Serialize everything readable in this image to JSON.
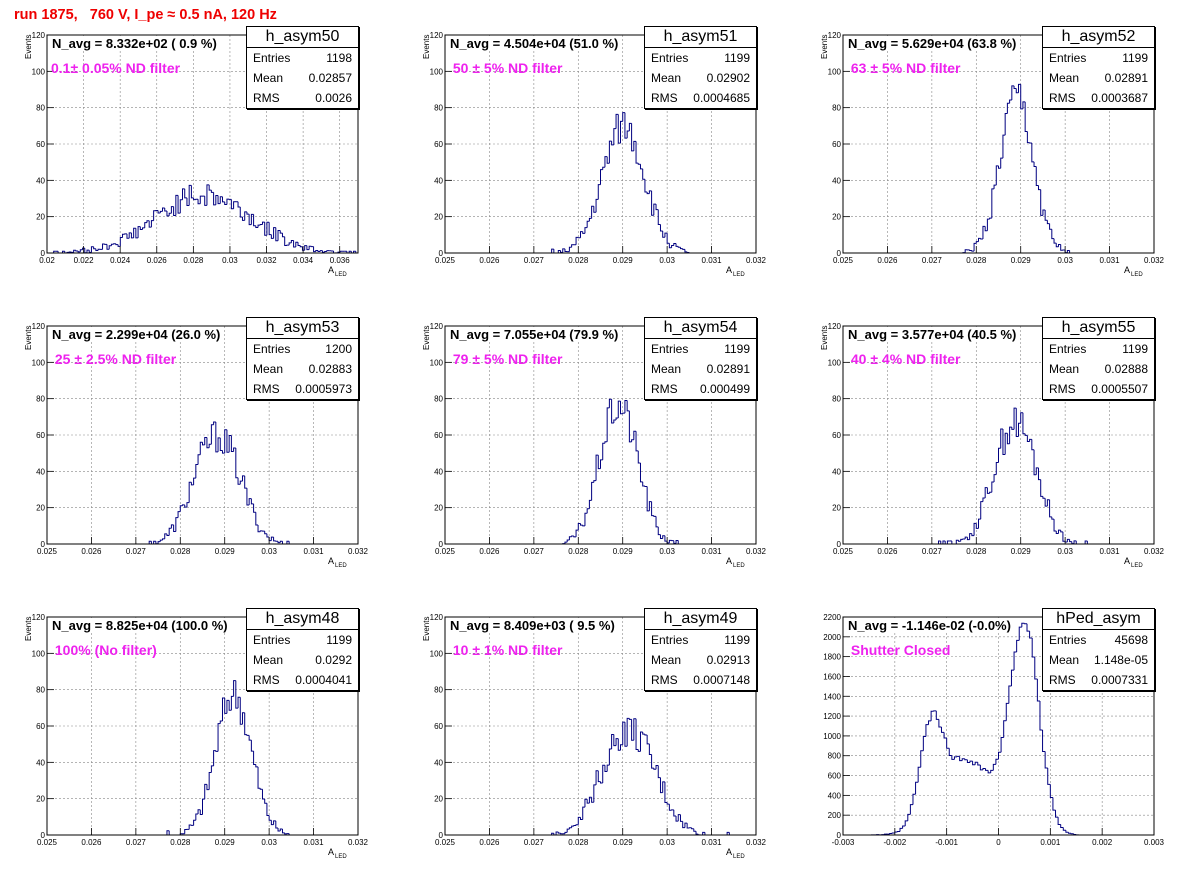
{
  "canvas_title": "run 1875,   760 V, I_pe ≈ 0.5 nA, 120 Hz",
  "colors": {
    "title": "#ee0000",
    "filter_text": "#ee22ee",
    "histogram": "#000080",
    "grid": "#888888"
  },
  "stat_labels": {
    "entries": "Entries",
    "mean": "Mean",
    "rms": "RMS"
  },
  "chart_data": [
    {
      "type": "histogram",
      "name": "h_asym50",
      "navg": "N_avg = 8.332e+02 ( 0.9 %)",
      "filter": "0.1± 0.05% ND filter",
      "entries": "1198",
      "mean": "0.02857",
      "rms": "0.0026",
      "xlabel": "A",
      "xlabel_sub": "LED",
      "ylabel": "Events",
      "xlim": [
        0.02,
        0.037
      ],
      "ylim": [
        0,
        120
      ],
      "xticks": [
        0.02,
        0.022,
        0.024,
        0.026,
        0.028,
        0.03,
        0.032,
        0.034,
        0.036
      ],
      "xtick_labels": [
        "0.02",
        "0.022",
        "0.024",
        "0.026",
        "0.028",
        "0.03",
        "0.032",
        "0.034",
        "0.036"
      ],
      "yticks": [
        0,
        20,
        40,
        60,
        80,
        100,
        120
      ],
      "ytick_labels": [
        "0",
        "20",
        "40",
        "60",
        "80",
        "100",
        "120"
      ],
      "grid": true,
      "mu": 0.02857,
      "sigma": 0.0026,
      "peak": 32,
      "shape": "single",
      "seed": 50
    },
    {
      "type": "histogram",
      "name": "h_asym51",
      "navg": "N_avg = 4.504e+04 (51.0 %)",
      "filter": " 50 ± 5% ND filter",
      "entries": "1199",
      "mean": "0.02902",
      "rms": "0.0004685",
      "xlabel": "A",
      "xlabel_sub": "LED",
      "ylabel": "Events",
      "xlim": [
        0.025,
        0.032
      ],
      "ylim": [
        0,
        120
      ],
      "xticks": [
        0.025,
        0.026,
        0.027,
        0.028,
        0.029,
        0.03,
        0.031,
        0.032
      ],
      "xtick_labels": [
        "0.025",
        "0.026",
        "0.027",
        "0.028",
        "0.029",
        "0.03",
        "0.031",
        "0.032"
      ],
      "yticks": [
        0,
        20,
        40,
        60,
        80,
        100,
        120
      ],
      "ytick_labels": [
        "0",
        "20",
        "40",
        "60",
        "80",
        "100",
        "120"
      ],
      "grid": true,
      "mu": 0.02902,
      "sigma": 0.00047,
      "peak": 70,
      "shape": "single",
      "seed": 51
    },
    {
      "type": "histogram",
      "name": "h_asym52",
      "navg": "N_avg = 5.629e+04 (63.8 %)",
      "filter": " 63 ± 5% ND filter",
      "entries": "1199",
      "mean": "0.02891",
      "rms": "0.0003687",
      "xlabel": "A",
      "xlabel_sub": "LED",
      "ylabel": "Events",
      "xlim": [
        0.025,
        0.032
      ],
      "ylim": [
        0,
        120
      ],
      "xticks": [
        0.025,
        0.026,
        0.027,
        0.028,
        0.029,
        0.03,
        0.031,
        0.032
      ],
      "xtick_labels": [
        "0.025",
        "0.026",
        "0.027",
        "0.028",
        "0.029",
        "0.03",
        "0.031",
        "0.032"
      ],
      "yticks": [
        0,
        20,
        40,
        60,
        80,
        100,
        120
      ],
      "ytick_labels": [
        "0",
        "20",
        "40",
        "60",
        "80",
        "100",
        "120"
      ],
      "grid": true,
      "mu": 0.02891,
      "sigma": 0.00037,
      "peak": 86,
      "shape": "single",
      "seed": 52
    },
    {
      "type": "histogram",
      "name": "h_asym53",
      "navg": "N_avg = 2.299e+04 (26.0 %)",
      "filter": " 25 ± 2.5% ND filter",
      "entries": "1200",
      "mean": "0.02883",
      "rms": "0.0005973",
      "xlabel": "A",
      "xlabel_sub": "LED",
      "ylabel": "Events",
      "xlim": [
        0.025,
        0.032
      ],
      "ylim": [
        0,
        120
      ],
      "xticks": [
        0.025,
        0.026,
        0.027,
        0.028,
        0.029,
        0.03,
        0.031,
        0.032
      ],
      "xtick_labels": [
        "0.025",
        "0.026",
        "0.027",
        "0.028",
        "0.029",
        "0.03",
        "0.031",
        "0.032"
      ],
      "yticks": [
        0,
        20,
        40,
        60,
        80,
        100,
        120
      ],
      "ytick_labels": [
        "0",
        "20",
        "40",
        "60",
        "80",
        "100",
        "120"
      ],
      "grid": true,
      "mu": 0.02883,
      "sigma": 0.0006,
      "peak": 50,
      "shape": "plateau",
      "seed": 53
    },
    {
      "type": "histogram",
      "name": "h_asym54",
      "navg": "N_avg = 7.055e+04 (79.9 %)",
      "filter": " 79 ± 5% ND filter",
      "entries": "1199",
      "mean": "0.02891",
      "rms": "0.000499",
      "xlabel": "A",
      "xlabel_sub": "LED",
      "ylabel": "Events",
      "xlim": [
        0.025,
        0.032
      ],
      "ylim": [
        0,
        120
      ],
      "xticks": [
        0.025,
        0.026,
        0.027,
        0.028,
        0.029,
        0.03,
        0.031,
        0.032
      ],
      "xtick_labels": [
        "0.025",
        "0.026",
        "0.027",
        "0.028",
        "0.029",
        "0.03",
        "0.031",
        "0.032"
      ],
      "yticks": [
        0,
        20,
        40,
        60,
        80,
        100,
        120
      ],
      "ytick_labels": [
        "0",
        "20",
        "40",
        "60",
        "80",
        "100",
        "120"
      ],
      "grid": true,
      "mu": 0.02891,
      "sigma": 0.0005,
      "peak": 64,
      "shape": "plateau",
      "seed": 54
    },
    {
      "type": "histogram",
      "name": "h_asym55",
      "navg": "N_avg = 3.577e+04 (40.5 %)",
      "filter": " 40 ± 4% ND filter",
      "entries": "1199",
      "mean": "0.02888",
      "rms": "0.0005507",
      "xlabel": "A",
      "xlabel_sub": "LED",
      "ylabel": "Events",
      "xlim": [
        0.025,
        0.032
      ],
      "ylim": [
        0,
        120
      ],
      "xticks": [
        0.025,
        0.026,
        0.027,
        0.028,
        0.029,
        0.03,
        0.031,
        0.032
      ],
      "xtick_labels": [
        "0.025",
        "0.026",
        "0.027",
        "0.028",
        "0.029",
        "0.03",
        "0.031",
        "0.032"
      ],
      "yticks": [
        0,
        20,
        40,
        60,
        80,
        100,
        120
      ],
      "ytick_labels": [
        "0",
        "20",
        "40",
        "60",
        "80",
        "100",
        "120"
      ],
      "grid": true,
      "mu": 0.02888,
      "sigma": 0.00055,
      "peak": 56,
      "shape": "plateau",
      "seed": 55
    },
    {
      "type": "histogram",
      "name": "h_asym48",
      "navg": "N_avg = 8.825e+04 (100.0 %)",
      "filter": " 100% (No filter)",
      "entries": "1199",
      "mean": "0.0292",
      "rms": "0.0004041",
      "xlabel": "A",
      "xlabel_sub": "LED",
      "ylabel": "Events",
      "xlim": [
        0.025,
        0.032
      ],
      "ylim": [
        0,
        120
      ],
      "xticks": [
        0.025,
        0.026,
        0.027,
        0.028,
        0.029,
        0.03,
        0.031,
        0.032
      ],
      "xtick_labels": [
        "0.025",
        "0.026",
        "0.027",
        "0.028",
        "0.029",
        "0.03",
        "0.031",
        "0.032"
      ],
      "yticks": [
        0,
        20,
        40,
        60,
        80,
        100,
        120
      ],
      "ytick_labels": [
        "0",
        "20",
        "40",
        "60",
        "80",
        "100",
        "120"
      ],
      "grid": true,
      "mu": 0.0292,
      "sigma": 0.0004,
      "peak": 78,
      "shape": "single",
      "seed": 48
    },
    {
      "type": "histogram",
      "name": "h_asym49",
      "navg": "N_avg = 8.409e+03 ( 9.5 %)",
      "filter": " 10 ± 1% ND filter",
      "entries": "1199",
      "mean": "0.02913",
      "rms": "0.0007148",
      "xlabel": "A",
      "xlabel_sub": "LED",
      "ylabel": "Events",
      "xlim": [
        0.025,
        0.032
      ],
      "ylim": [
        0,
        120
      ],
      "xticks": [
        0.025,
        0.026,
        0.027,
        0.028,
        0.029,
        0.03,
        0.031,
        0.032
      ],
      "xtick_labels": [
        "0.025",
        "0.026",
        "0.027",
        "0.028",
        "0.029",
        "0.03",
        "0.031",
        "0.032"
      ],
      "yticks": [
        0,
        20,
        40,
        60,
        80,
        100,
        120
      ],
      "ytick_labels": [
        "0",
        "20",
        "40",
        "60",
        "80",
        "100",
        "120"
      ],
      "grid": true,
      "mu": 0.02913,
      "sigma": 0.0007,
      "peak": 48,
      "shape": "plateau",
      "seed": 49
    },
    {
      "type": "histogram",
      "name": "hPed_asym",
      "navg": "N_avg = -1.146e-02 (-0.0%)",
      "filter": " Shutter Closed",
      "entries": "45698",
      "mean": "1.148e-05",
      "rms": "0.0007331",
      "xlabel": "",
      "xlabel_sub": "",
      "ylabel": "",
      "xlim": [
        -0.003,
        0.003
      ],
      "ylim": [
        0,
        2200
      ],
      "xticks": [
        -0.003,
        -0.002,
        -0.001,
        0,
        0.001,
        0.002,
        0.003
      ],
      "xtick_labels": [
        "-0.003",
        "-0.002",
        "-0.001",
        "0",
        "0.001",
        "0.002",
        "0.003"
      ],
      "yticks": [
        0,
        200,
        400,
        600,
        800,
        1000,
        1200,
        1400,
        1600,
        1800,
        2000,
        2200
      ],
      "ytick_labels": [
        "0",
        "200",
        "400",
        "600",
        "800",
        "1000",
        "1200",
        "1400",
        "1600",
        "1800",
        "2000",
        "2200"
      ],
      "grid": true,
      "mu": 0.0005,
      "sigma": 0.00025,
      "peak": 2100,
      "shape": "ped",
      "seed": 99
    }
  ]
}
